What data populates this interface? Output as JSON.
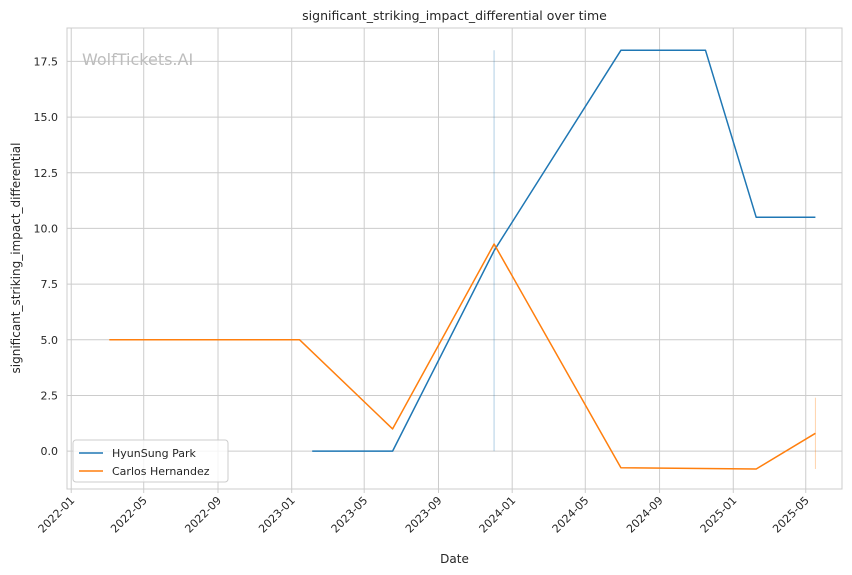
{
  "chart_data": {
    "type": "line",
    "title": "significant_striking_impact_differential over time",
    "xlabel": "Date",
    "ylabel": "significant_striking_impact_differential",
    "watermark": "WolfTickets.AI",
    "x_ticks": [
      "2022-01",
      "2022-05",
      "2022-09",
      "2023-01",
      "2023-05",
      "2023-09",
      "2024-01",
      "2024-05",
      "2024-09",
      "2025-01",
      "2025-05"
    ],
    "y_ticks": [
      "0.0",
      "2.5",
      "5.0",
      "7.5",
      "10.0",
      "12.5",
      "15.0",
      "17.5"
    ],
    "xlim": [
      "2021-12-25",
      "2025-06-30"
    ],
    "ylim": [
      -1.7,
      19.0
    ],
    "grid": true,
    "legend_position": "lower-left",
    "series": [
      {
        "name": "HyunSung Park",
        "color": "#1f77b4",
        "points": [
          {
            "x": "2023-02-04",
            "y": 0.0
          },
          {
            "x": "2023-06-17",
            "y": 0.0
          },
          {
            "x": "2023-12-02",
            "y": 9.0
          },
          {
            "x": "2024-06-29",
            "y": 18.0
          },
          {
            "x": "2024-11-16",
            "y": 18.0
          },
          {
            "x": "2025-02-08",
            "y": 10.5
          },
          {
            "x": "2025-05-17",
            "y": 10.5
          }
        ]
      },
      {
        "name": "Carlos Hernandez",
        "color": "#ff7f0e",
        "points": [
          {
            "x": "2022-03-05",
            "y": 5.0
          },
          {
            "x": "2023-01-14",
            "y": 5.0
          },
          {
            "x": "2023-06-17",
            "y": 1.0
          },
          {
            "x": "2023-12-02",
            "y": 9.3
          },
          {
            "x": "2024-06-29",
            "y": -0.75
          },
          {
            "x": "2025-02-08",
            "y": -0.8
          },
          {
            "x": "2025-05-17",
            "y": 0.8
          }
        ]
      }
    ],
    "annotations": [
      {
        "x": "2023-12-02",
        "y_from": 0.0,
        "y_to": 18.0,
        "color": "#1f77b4"
      },
      {
        "x": "2025-05-17",
        "y_from": -0.8,
        "y_to": 2.4,
        "color": "#ff7f0e"
      }
    ]
  }
}
